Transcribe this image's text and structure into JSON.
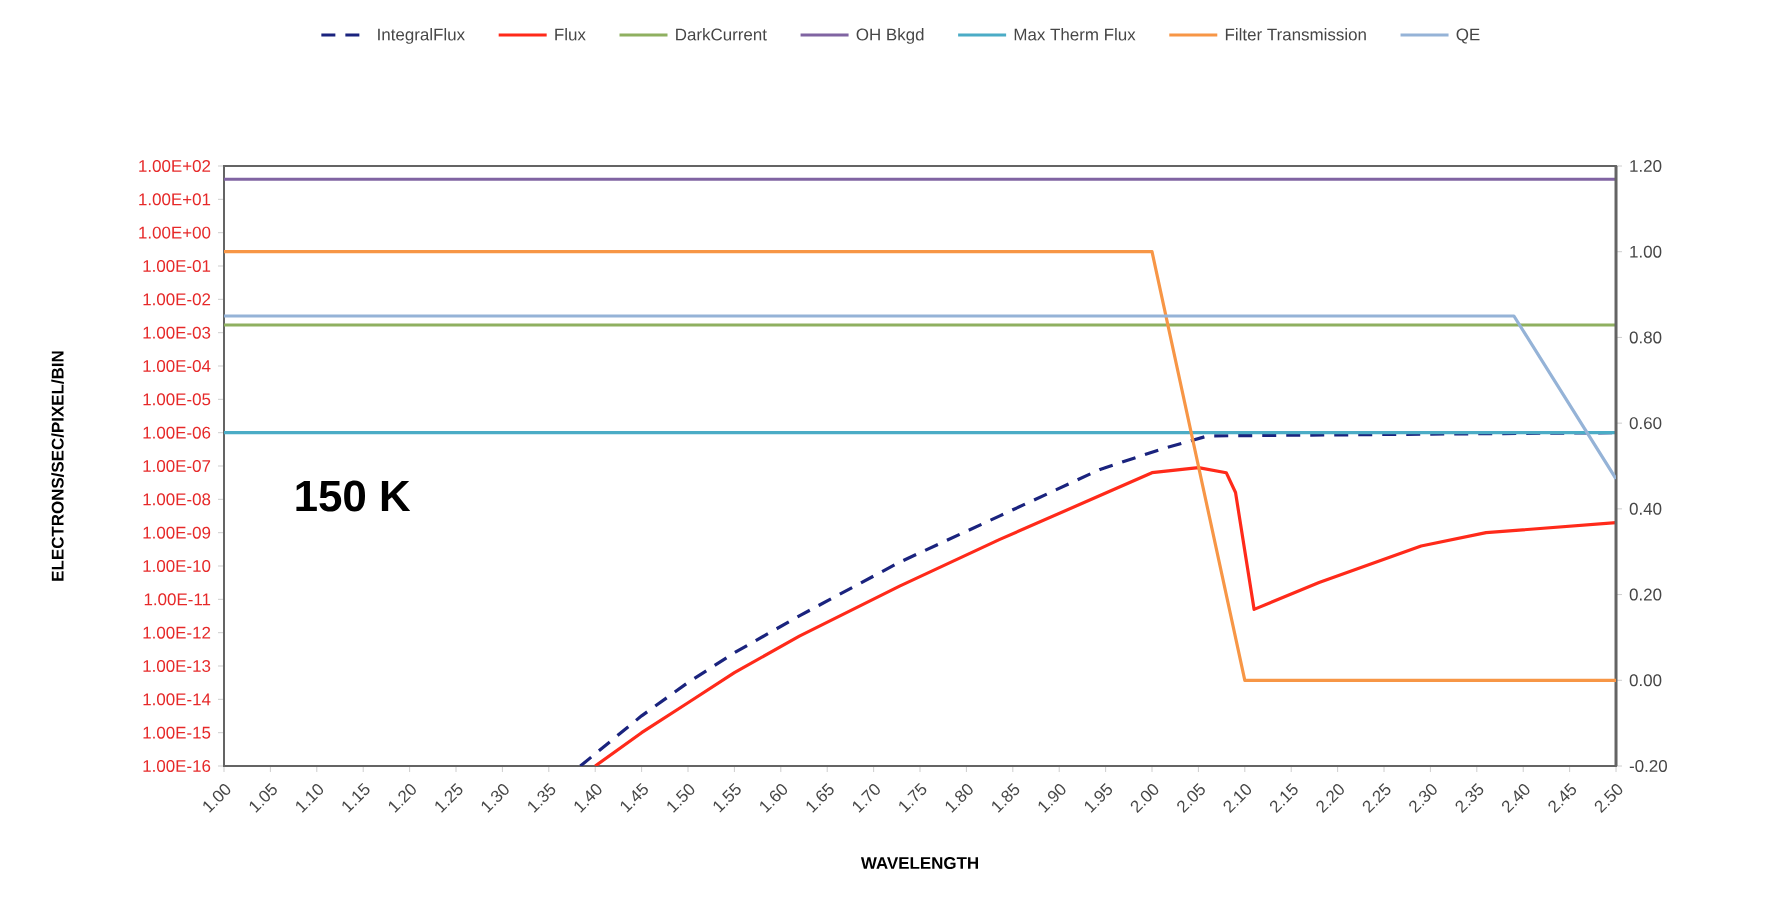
{
  "chart_data": {
    "type": "line",
    "xlabel": "WAVELENGTH",
    "ylabel": "ELECTRONS/SEC/PIXEL/BIN",
    "log": "y",
    "legend": "top",
    "marker": "none",
    "annotations": [
      "150 K"
    ],
    "xlim": [
      1.0,
      2.5
    ],
    "ylim": [
      1e-16,
      100
    ],
    "y2lim": [
      -0.2,
      1.2
    ],
    "xticks": [
      {
        "value": 1.0,
        "label": "1.00"
      },
      {
        "value": 1.05,
        "label": "1.05"
      },
      {
        "value": 1.1,
        "label": "1.10"
      },
      {
        "value": 1.15,
        "label": "1.15"
      },
      {
        "value": 1.2,
        "label": "1.20"
      },
      {
        "value": 1.25,
        "label": "1.25"
      },
      {
        "value": 1.3,
        "label": "1.30"
      },
      {
        "value": 1.35,
        "label": "1.35"
      },
      {
        "value": 1.4,
        "label": "1.40"
      },
      {
        "value": 1.45,
        "label": "1.45"
      },
      {
        "value": 1.5,
        "label": "1.50"
      },
      {
        "value": 1.55,
        "label": "1.55"
      },
      {
        "value": 1.6,
        "label": "1.60"
      },
      {
        "value": 1.65,
        "label": "1.65"
      },
      {
        "value": 1.7,
        "label": "1.70"
      },
      {
        "value": 1.75,
        "label": "1.75"
      },
      {
        "value": 1.8,
        "label": "1.80"
      },
      {
        "value": 1.85,
        "label": "1.85"
      },
      {
        "value": 1.9,
        "label": "1.90"
      },
      {
        "value": 1.95,
        "label": "1.95"
      },
      {
        "value": 2.0,
        "label": "2.00"
      },
      {
        "value": 2.05,
        "label": "2.05"
      },
      {
        "value": 2.1,
        "label": "2.10"
      },
      {
        "value": 2.15,
        "label": "2.15"
      },
      {
        "value": 2.2,
        "label": "2.20"
      },
      {
        "value": 2.25,
        "label": "2.25"
      },
      {
        "value": 2.3,
        "label": "2.30"
      },
      {
        "value": 2.35,
        "label": "2.35"
      },
      {
        "value": 2.4,
        "label": "2.40"
      },
      {
        "value": 2.45,
        "label": "2.45"
      },
      {
        "value": 2.5,
        "label": "2.50"
      }
    ],
    "yticks": [
      {
        "value": 1e-16,
        "label": "1.00E-16"
      },
      {
        "value": 1e-15,
        "label": "1.00E-15"
      },
      {
        "value": 1e-14,
        "label": "1.00E-14"
      },
      {
        "value": 1e-13,
        "label": "1.00E-13"
      },
      {
        "value": 1e-12,
        "label": "1.00E-12"
      },
      {
        "value": 1e-11,
        "label": "1.00E-11"
      },
      {
        "value": 1e-10,
        "label": "1.00E-10"
      },
      {
        "value": 1e-09,
        "label": "1.00E-09"
      },
      {
        "value": 1e-08,
        "label": "1.00E-08"
      },
      {
        "value": 1e-07,
        "label": "1.00E-07"
      },
      {
        "value": 1e-06,
        "label": "1.00E-06"
      },
      {
        "value": 1e-05,
        "label": "1.00E-05"
      },
      {
        "value": 0.0001,
        "label": "1.00E-04"
      },
      {
        "value": 0.001,
        "label": "1.00E-03"
      },
      {
        "value": 0.01,
        "label": "1.00E-02"
      },
      {
        "value": 0.1,
        "label": "1.00E-01"
      },
      {
        "value": 1,
        "label": "1.00E+00"
      },
      {
        "value": 10,
        "label": "1.00E+01"
      },
      {
        "value": 100,
        "label": "1.00E+02"
      }
    ],
    "y2ticks": [
      {
        "value": -0.2,
        "label": "-0.20"
      },
      {
        "value": 0,
        "label": "0.00"
      },
      {
        "value": 0.2,
        "label": "0.20"
      },
      {
        "value": 0.4,
        "label": "0.40"
      },
      {
        "value": 0.6,
        "label": "0.60"
      },
      {
        "value": 0.8,
        "label": "0.80"
      },
      {
        "value": 1.0,
        "label": "1.00"
      },
      {
        "value": 1.2,
        "label": "1.20"
      }
    ],
    "series": [
      {
        "name": "IntegralFlux",
        "color": "#1a237e",
        "line_style": "dashed",
        "x": [
          1.384,
          1.45,
          1.5,
          1.55,
          1.62,
          1.728,
          1.836,
          1.944,
          2.01,
          2.06,
          2.5
        ],
        "values": [
          1e-16,
          3.2e-15,
          3.2e-14,
          2.5e-13,
          3.2e-12,
          1.3e-10,
          3.2e-09,
          7.9e-08,
          3.2e-07,
          8e-07,
          1e-06
        ]
      },
      {
        "name": "Flux",
        "color": "#ff2a1a",
        "x": [
          1.4,
          1.45,
          1.5,
          1.55,
          1.62,
          1.728,
          1.836,
          1.944,
          2.0,
          2.05,
          2.08,
          2.09,
          2.11,
          2.18,
          2.29,
          2.36,
          2.5
        ],
        "values": [
          1e-16,
          1e-15,
          7.9e-15,
          6.3e-14,
          7.9e-13,
          2.5e-11,
          6.3e-10,
          1.3e-08,
          6.3e-08,
          8.9e-08,
          6.3e-08,
          1.6e-08,
          5e-12,
          3.2e-11,
          4e-10,
          1e-09,
          2e-09
        ]
      },
      {
        "name": "DarkCurrent",
        "color": "#8fb060",
        "x": [
          1.0,
          2.5
        ],
        "values": [
          0.0017,
          0.0017
        ]
      },
      {
        "name": "OH Bkgd",
        "color": "#8064a2",
        "x": [
          1.0,
          2.5
        ],
        "values": [
          40,
          40
        ]
      },
      {
        "name": "Max Therm Flux",
        "color": "#4bacc6",
        "x": [
          1.0,
          2.5
        ],
        "values": [
          1e-06,
          1e-06
        ]
      },
      {
        "name": "Filter Transmission",
        "color": "#f79646",
        "axis": "y2",
        "x": [
          1.0,
          2.0,
          2.1,
          2.5
        ],
        "values": [
          1.0,
          1.0,
          0.0,
          0.0
        ]
      },
      {
        "name": "QE",
        "color": "#95b3d7",
        "axis": "y2",
        "x": [
          1.0,
          2.39,
          2.5
        ],
        "values": [
          0.85,
          0.85,
          0.47
        ]
      }
    ]
  }
}
